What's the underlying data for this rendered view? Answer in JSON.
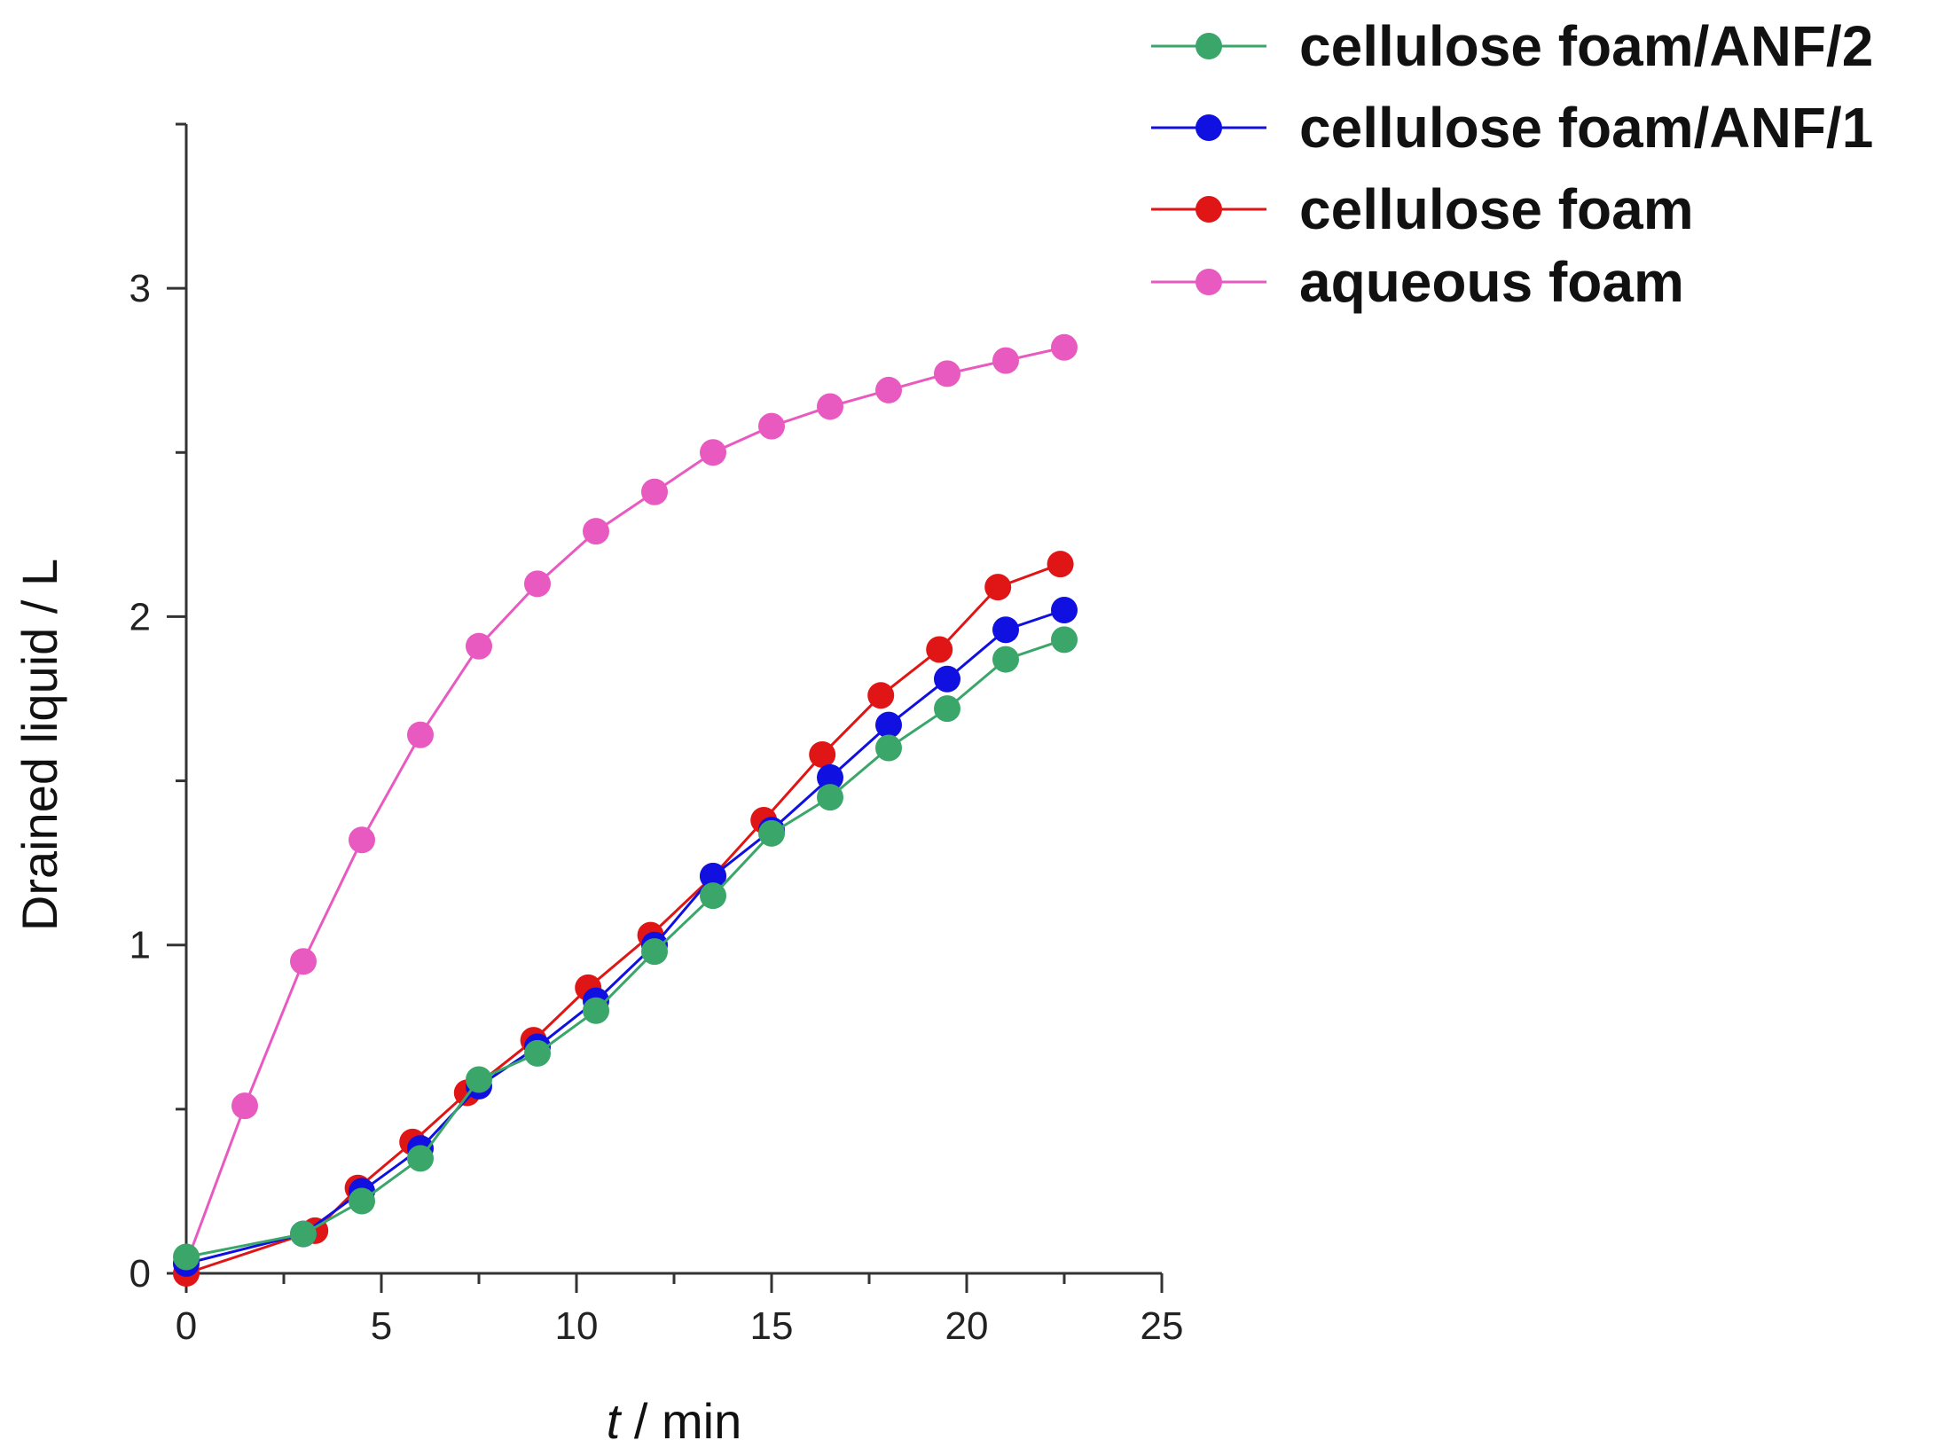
{
  "chart_data": {
    "type": "line",
    "xlabel_italic": "t",
    "xlabel_rest": " / min",
    "ylabel": "Drained liquid / L",
    "xlim": [
      0,
      25
    ],
    "ylim": [
      0,
      3.5
    ],
    "x_ticks": [
      0,
      5,
      10,
      15,
      20,
      25
    ],
    "y_ticks": [
      0,
      1,
      2,
      3
    ],
    "grid": false,
    "legend_position": "top-right",
    "series": [
      {
        "name": "cellulose foam/ANF/2",
        "color": "#3aa66a",
        "x": [
          0,
          3,
          4.5,
          6,
          7.5,
          9,
          10.5,
          12,
          13.5,
          15,
          16.5,
          18,
          19.5,
          21,
          22.5
        ],
        "y": [
          0.05,
          0.12,
          0.22,
          0.35,
          0.59,
          0.67,
          0.8,
          0.98,
          1.15,
          1.34,
          1.45,
          1.6,
          1.72,
          1.87,
          1.93
        ]
      },
      {
        "name": "cellulose foam/ANF/1",
        "color": "#1010e0",
        "x": [
          0,
          3,
          4.5,
          6,
          7.5,
          9,
          10.5,
          12,
          13.5,
          15,
          16.5,
          18,
          19.5,
          21,
          22.5
        ],
        "y": [
          0.03,
          0.12,
          0.25,
          0.38,
          0.57,
          0.69,
          0.83,
          1.0,
          1.21,
          1.35,
          1.51,
          1.67,
          1.81,
          1.96,
          2.02
        ]
      },
      {
        "name": "cellulose foam",
        "color": "#e01515",
        "x": [
          0,
          3.3,
          4.4,
          5.8,
          7.2,
          8.9,
          10.3,
          11.9,
          13.5,
          14.8,
          16.3,
          17.8,
          19.3,
          20.8,
          22.4
        ],
        "y": [
          0.0,
          0.13,
          0.26,
          0.4,
          0.55,
          0.71,
          0.87,
          1.03,
          1.21,
          1.38,
          1.58,
          1.76,
          1.9,
          2.09,
          2.16
        ]
      },
      {
        "name": "aqueous foam",
        "color": "#e85ac0",
        "x": [
          0,
          1.5,
          3,
          4.5,
          6,
          7.5,
          9,
          10.5,
          12,
          13.5,
          15,
          16.5,
          18,
          19.5,
          21,
          22.5
        ],
        "y": [
          0.03,
          0.51,
          0.95,
          1.32,
          1.64,
          1.91,
          2.1,
          2.26,
          2.38,
          2.5,
          2.58,
          2.64,
          2.69,
          2.74,
          2.78,
          2.82
        ]
      }
    ]
  }
}
